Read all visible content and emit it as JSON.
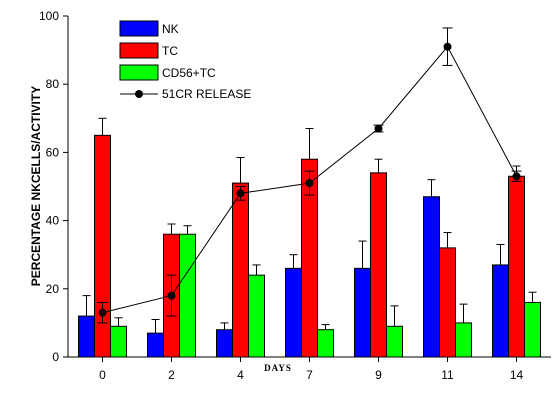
{
  "chart_data": {
    "type": "bar",
    "categories": [
      "0",
      "2",
      "4",
      "7",
      "9",
      "11",
      "14"
    ],
    "ylabel": "PERCENTAGE NKCELLS/ACTIVITY",
    "xlabel": "DAYS",
    "ylim": [
      0,
      100
    ],
    "yticks": [
      "0",
      "20",
      "40",
      "60",
      "80",
      "100"
    ],
    "grid": false,
    "legend_position": "top-left",
    "series": [
      {
        "name": "NK",
        "color": "#0000ff",
        "values": [
          12,
          7,
          8,
          26,
          26,
          47,
          27
        ],
        "errors": [
          6,
          4,
          2,
          4,
          8,
          5,
          6
        ]
      },
      {
        "name": "TC",
        "color": "#ff0000",
        "values": [
          65,
          36,
          51,
          58,
          54,
          32,
          53
        ],
        "errors": [
          5,
          3,
          7.5,
          9,
          4,
          4.5,
          3
        ]
      },
      {
        "name": "CD56+TC",
        "color": "#00ff00",
        "values": [
          9,
          36,
          24,
          8,
          9,
          10,
          16
        ],
        "errors": [
          2.5,
          2.5,
          3,
          1.5,
          6,
          5.5,
          3
        ]
      }
    ],
    "line": {
      "name": "51CR RELEASE",
      "color": "#000000",
      "values": [
        13,
        18,
        48,
        51,
        67,
        91,
        53
      ],
      "errors": [
        3,
        6,
        2,
        3.5,
        1,
        5.5,
        1.5
      ]
    }
  }
}
